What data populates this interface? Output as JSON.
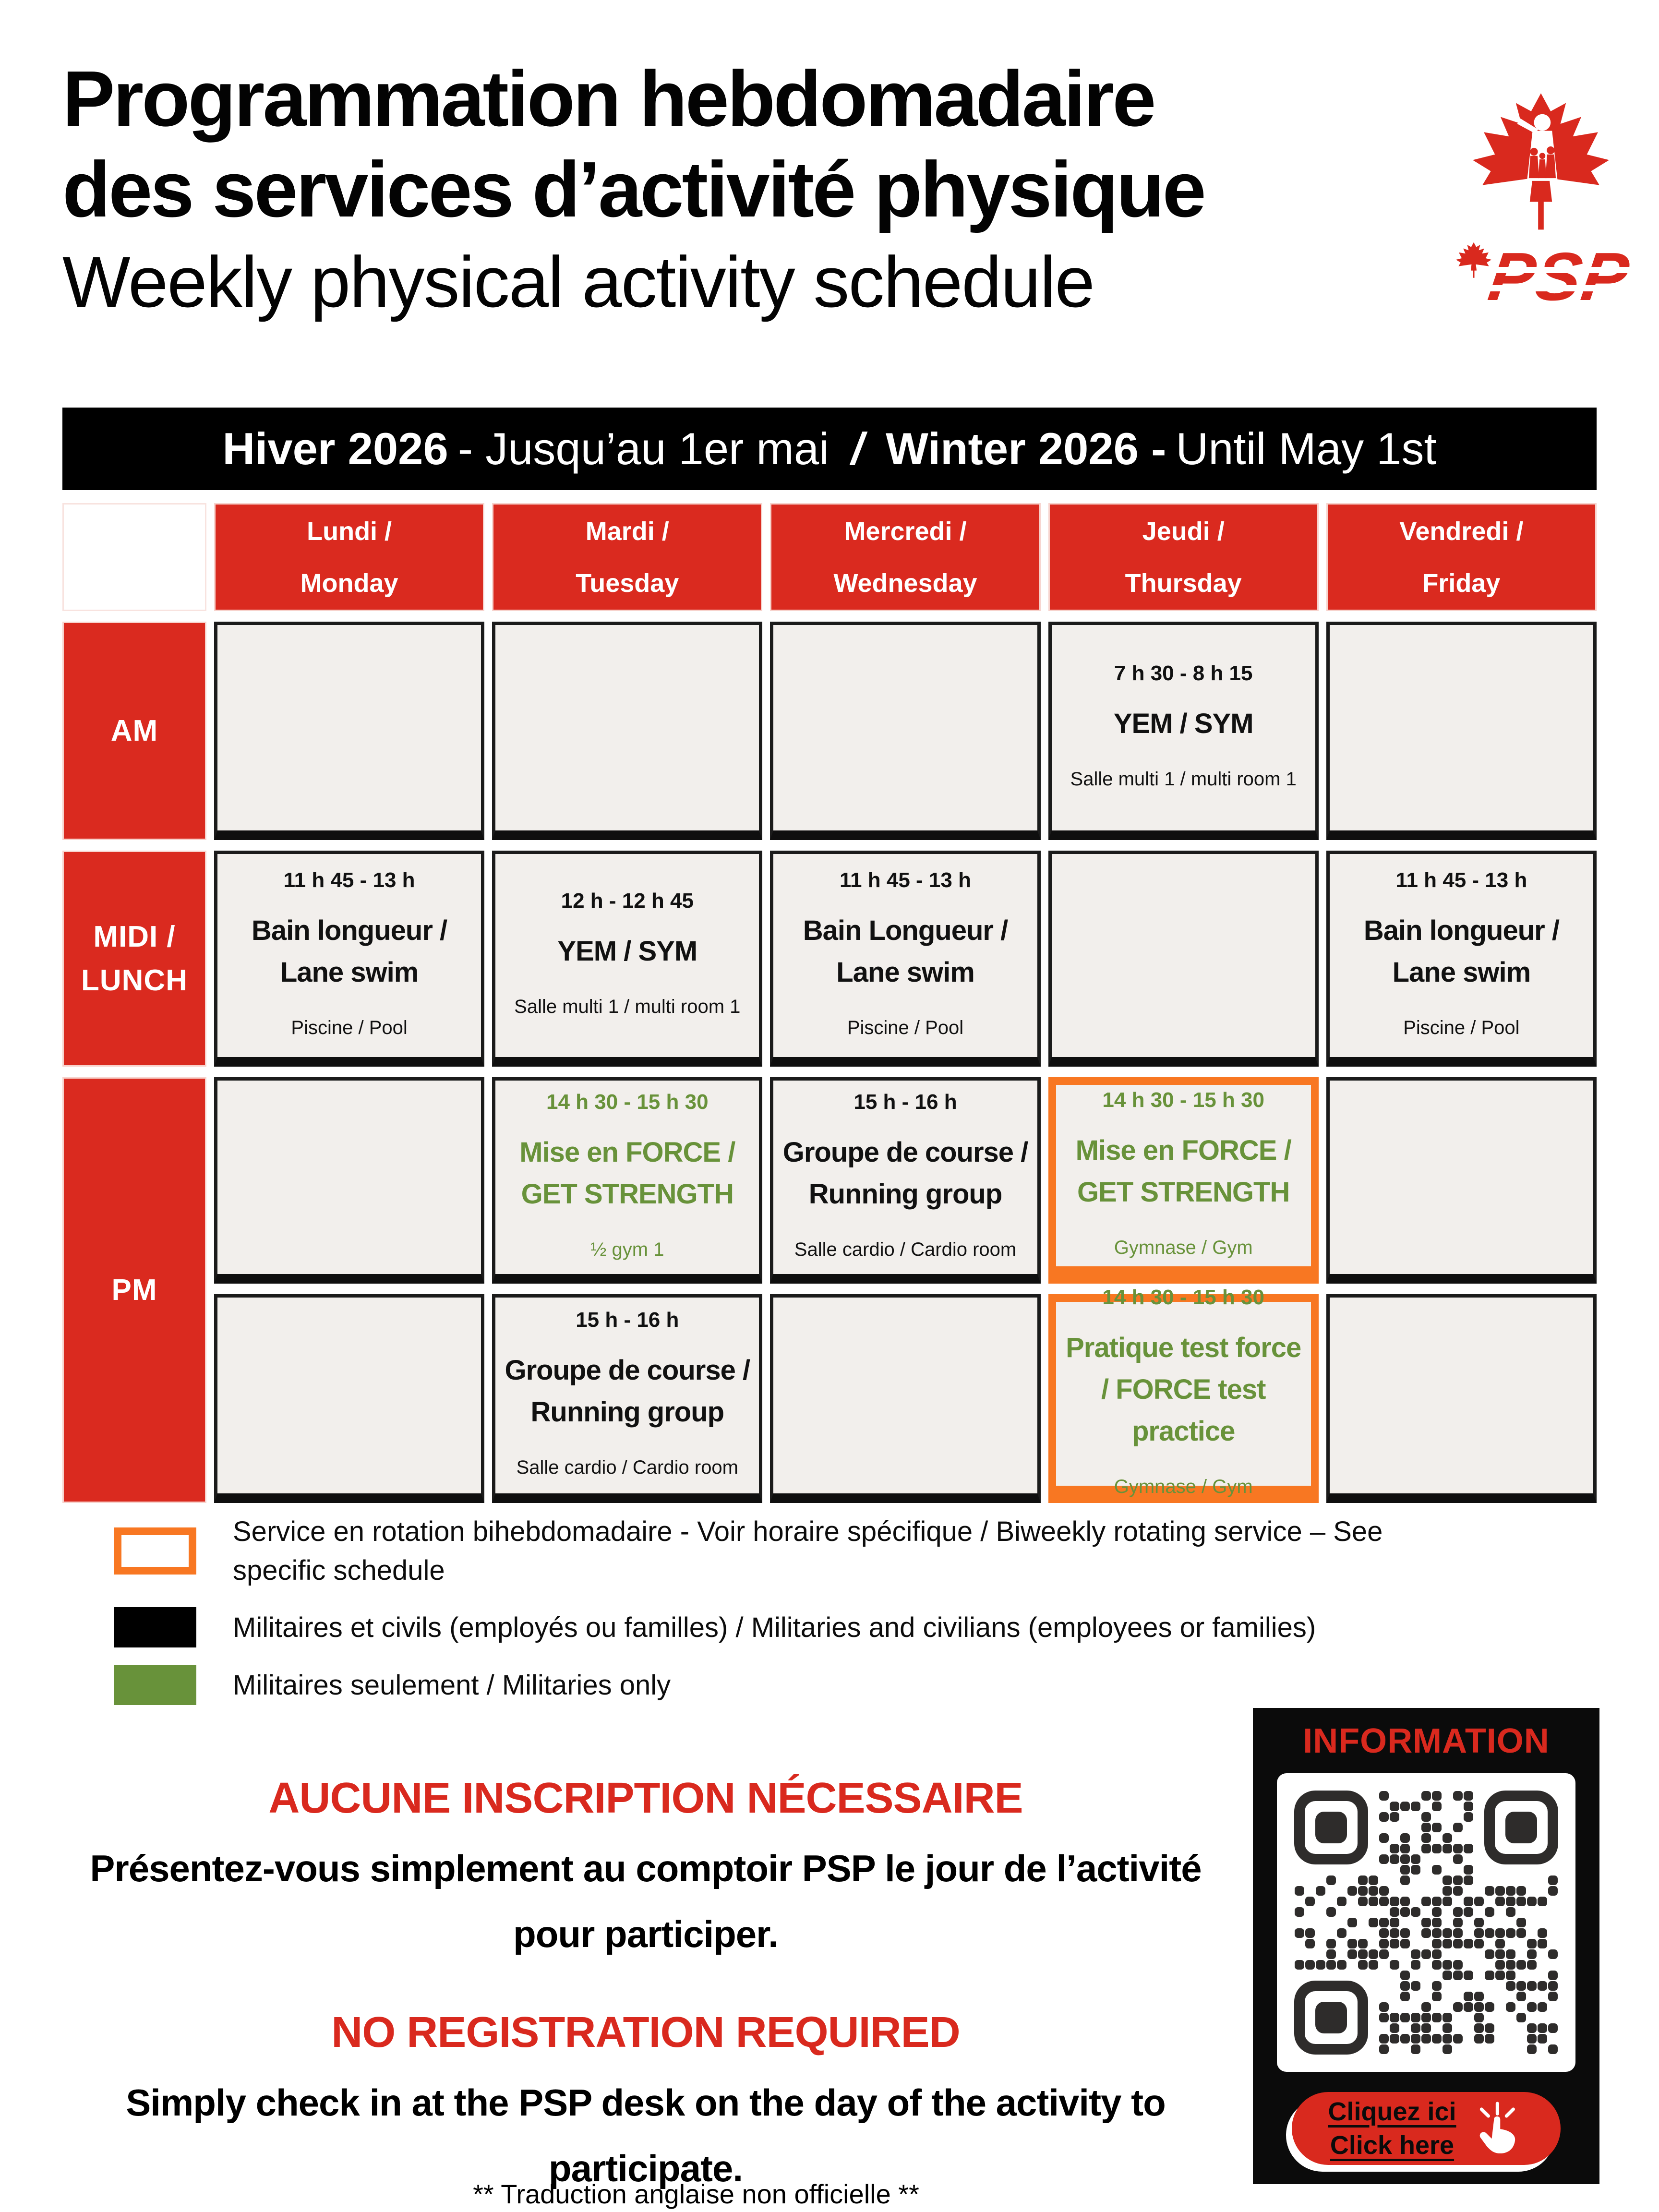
{
  "header": {
    "title_fr_line1": "Programmation hebdomadaire",
    "title_fr_line2": "des services d’activité physique",
    "title_en": "Weekly physical activity schedule",
    "logo": {
      "org": "PSP"
    }
  },
  "season_bar": {
    "fr_bold": "Hiver 2026",
    "fr_rest": "- Jusqu’au 1er mai",
    "divider": "/",
    "en_bold": "Winter 2026 -",
    "en_rest": "Until May 1st"
  },
  "schedule": {
    "day_headers": [
      {
        "fr": "Lundi /",
        "en": "Monday"
      },
      {
        "fr": "Mardi /",
        "en": "Tuesday"
      },
      {
        "fr": "Mercredi /",
        "en": "Wednesday"
      },
      {
        "fr": "Jeudi /",
        "en": "Thursday"
      },
      {
        "fr": "Vendredi /",
        "en": "Friday"
      }
    ],
    "row_labels": {
      "am": "AM",
      "midi_line1": "MIDI /",
      "midi_line2": "LUNCH",
      "pm": "PM"
    },
    "rows": [
      {
        "period": "AM",
        "cells": [
          {
            "time": "",
            "name": "",
            "location": ""
          },
          {
            "time": "",
            "name": "",
            "location": ""
          },
          {
            "time": "",
            "name": "",
            "location": ""
          },
          {
            "time": "7 h 30 - 8 h 15",
            "name": "YEM / SYM",
            "location": "Salle multi 1 / multi room 1",
            "audience": "all",
            "biweekly": false
          },
          {
            "time": "",
            "name": "",
            "location": ""
          }
        ]
      },
      {
        "period": "MIDI / LUNCH",
        "cells": [
          {
            "time": "11 h 45 - 13 h",
            "name": "Bain longueur / Lane swim",
            "location": "Piscine / Pool",
            "audience": "all",
            "biweekly": false
          },
          {
            "time": "12 h - 12 h 45",
            "name": "YEM / SYM",
            "location": "Salle multi 1 / multi room 1",
            "audience": "all",
            "biweekly": false
          },
          {
            "time": "11 h 45 - 13 h",
            "name": "Bain Longueur / Lane swim",
            "location": "Piscine / Pool",
            "audience": "all",
            "biweekly": false
          },
          {
            "time": "",
            "name": "",
            "location": ""
          },
          {
            "time": "11 h 45 - 13 h",
            "name": "Bain longueur / Lane swim",
            "location": "Piscine / Pool",
            "audience": "all",
            "biweekly": false
          }
        ]
      },
      {
        "period": "PM",
        "cells": [
          {
            "time": "",
            "name": "",
            "location": ""
          },
          {
            "time": "14 h 30 - 15 h 30",
            "name": "Mise en FORCE / GET STRENGTH",
            "location": "½ gym 1",
            "audience": "military",
            "biweekly": false
          },
          {
            "time": "15 h - 16 h",
            "name": "Groupe de course / Running group",
            "location": "Salle cardio / Cardio room",
            "audience": "all",
            "biweekly": false
          },
          {
            "time": "14 h 30 - 15 h 30",
            "name": "Mise en FORCE / GET STRENGTH",
            "location": "Gymnase / Gym",
            "audience": "military",
            "biweekly": true
          },
          {
            "time": "",
            "name": "",
            "location": ""
          }
        ]
      },
      {
        "period": "PM",
        "cells": [
          {
            "time": "",
            "name": "",
            "location": ""
          },
          {
            "time": "15 h - 16 h",
            "name": "Groupe de course / Running group",
            "location": "Salle cardio / Cardio room",
            "audience": "all",
            "biweekly": false
          },
          {
            "time": "",
            "name": "",
            "location": ""
          },
          {
            "time": "14 h 30 - 15 h 30",
            "name": "Pratique test force / FORCE test practice",
            "location": "Gymnase / Gym",
            "audience": "military",
            "biweekly": true
          },
          {
            "time": "",
            "name": "",
            "location": ""
          }
        ]
      }
    ]
  },
  "legend": [
    {
      "swatch": "orange-outline-biweekly",
      "text": "Service en rotation bihebdomadaire - Voir horaire spécifique /  Biweekly rotating service – See specific schedule"
    },
    {
      "swatch": "black-fill-everyone",
      "text": "Militaires et civils (employés ou familles) / Militaries and civilians (employees or families)"
    },
    {
      "swatch": "green-fill-military",
      "text": "Militaires seulement / Militaries only"
    }
  ],
  "notices": {
    "fr_heading": "AUCUNE INSCRIPTION NÉCESSAIRE",
    "fr_body": "Présentez-vous simplement au comptoir PSP le jour de l’activité pour participer.",
    "en_heading": "NO REGISTRATION REQUIRED",
    "en_body": "Simply check in at the PSP desk on the day of the activity to participate.",
    "footnote": "** Traduction anglaise non officielle **"
  },
  "info_box": {
    "title": "INFORMATION",
    "button_line1": "Cliquez ici",
    "button_line2": "Click here"
  },
  "colors": {
    "red": "#d9291e",
    "green": "#68923a",
    "orange": "#f87722",
    "cell_bg": "#f2efec",
    "black": "#0b0b0b"
  }
}
